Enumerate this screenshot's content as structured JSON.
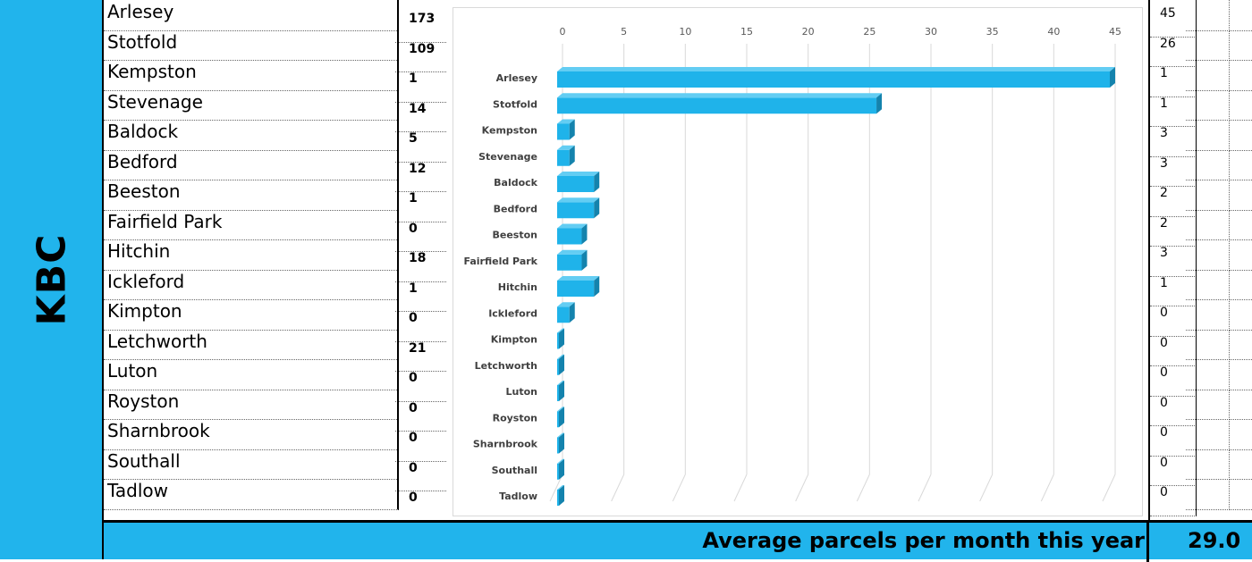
{
  "band_label": "KBC",
  "places": [
    {
      "name": "Arlesey",
      "count": "173",
      "right_value": "45"
    },
    {
      "name": "Stotfold",
      "count": "109",
      "right_value": "26"
    },
    {
      "name": "Kempston",
      "count": "1",
      "right_value": "1"
    },
    {
      "name": "Stevenage",
      "count": "14",
      "right_value": "1"
    },
    {
      "name": "Baldock",
      "count": "5",
      "right_value": "3"
    },
    {
      "name": "Bedford",
      "count": "12",
      "right_value": "3"
    },
    {
      "name": "Beeston",
      "count": "1",
      "right_value": "2"
    },
    {
      "name": "Fairfield Park",
      "count": "0",
      "right_value": "2"
    },
    {
      "name": "Hitchin",
      "count": "18",
      "right_value": "3"
    },
    {
      "name": "Ickleford",
      "count": "1",
      "right_value": "1"
    },
    {
      "name": "Kimpton",
      "count": "0",
      "right_value": "0"
    },
    {
      "name": "Letchworth",
      "count": "21",
      "right_value": "0"
    },
    {
      "name": "Luton",
      "count": "0",
      "right_value": "0"
    },
    {
      "name": "Royston",
      "count": "0",
      "right_value": "0"
    },
    {
      "name": "Sharnbrook",
      "count": "0",
      "right_value": "0"
    },
    {
      "name": "Southall",
      "count": "0",
      "right_value": "0"
    },
    {
      "name": "Tadlow",
      "count": "0",
      "right_value": "0"
    }
  ],
  "summary": {
    "label": "Average parcels per month this year",
    "value": "29.0"
  },
  "colors": {
    "band": "#21b4ec",
    "bar_front": "#1fb3ea",
    "bar_top": "#63cdf3",
    "bar_side": "#1483ad",
    "grid": "#d9d9d9"
  },
  "chart_data": {
    "type": "bar",
    "orientation": "horizontal",
    "style": "3d",
    "categories": [
      "Arlesey",
      "Stotfold",
      "Kempston",
      "Stevenage",
      "Baldock",
      "Bedford",
      "Beeston",
      "Fairfield Park",
      "Hitchin",
      "Ickleford",
      "Kimpton",
      "Letchworth",
      "Luton",
      "Royston",
      "Sharnbrook",
      "Southall",
      "Tadlow"
    ],
    "values": [
      45,
      26,
      1,
      1,
      3,
      3,
      2,
      2,
      3,
      1,
      0,
      0,
      0,
      0,
      0,
      0,
      0
    ],
    "xlim": [
      0,
      45
    ],
    "x_ticks": [
      "0",
      "5",
      "10",
      "15",
      "20",
      "25",
      "30",
      "35",
      "40",
      "45"
    ],
    "tick_position": "top",
    "grid": true,
    "legend": "none",
    "title": "",
    "xlabel": "",
    "ylabel": ""
  }
}
